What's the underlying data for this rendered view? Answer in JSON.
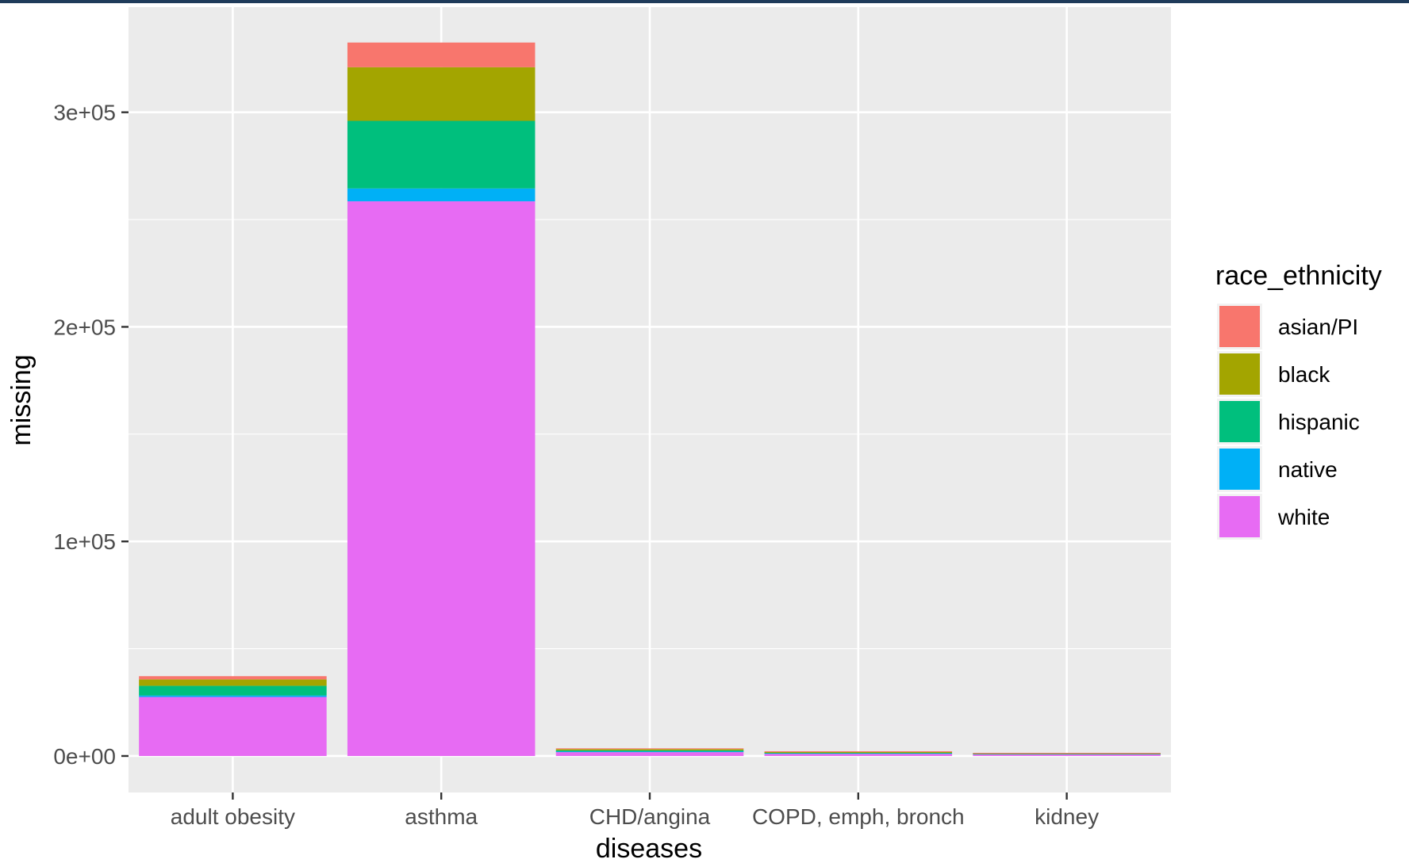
{
  "chart_data": {
    "type": "bar",
    "stacked": true,
    "title": "",
    "xlabel": "diseases",
    "ylabel": "missing",
    "categories": [
      "adult obesity",
      "asthma",
      "CHD/angina",
      "COPD, emph, bronch",
      "kidney"
    ],
    "ylim": [
      -17000,
      349000
    ],
    "yticks": [
      {
        "value": 0,
        "label": "0e+00"
      },
      {
        "value": 100000,
        "label": "1e+05"
      },
      {
        "value": 200000,
        "label": "2e+05"
      },
      {
        "value": 300000,
        "label": "3e+05"
      }
    ],
    "grid": true,
    "legend": {
      "title": "race_ethnicity",
      "position": "right"
    },
    "series": [
      {
        "name": "white",
        "color": "#E76BF3",
        "values": [
          27500,
          258500,
          1800,
          1000,
          700
        ]
      },
      {
        "name": "native",
        "color": "#00B0F6",
        "values": [
          700,
          6000,
          300,
          150,
          100
        ]
      },
      {
        "name": "hispanic",
        "color": "#00BF7D",
        "values": [
          4500,
          31500,
          500,
          300,
          150
        ]
      },
      {
        "name": "black",
        "color": "#A3A500",
        "values": [
          3000,
          25000,
          600,
          400,
          150
        ]
      },
      {
        "name": "asian/PI",
        "color": "#F8766D",
        "values": [
          1500,
          11500,
          200,
          100,
          50
        ]
      }
    ],
    "legend_order": [
      "asian/PI",
      "black",
      "hispanic",
      "native",
      "white"
    ],
    "panel_background": "#EBEBEB",
    "grid_color": "#FFFFFF"
  }
}
